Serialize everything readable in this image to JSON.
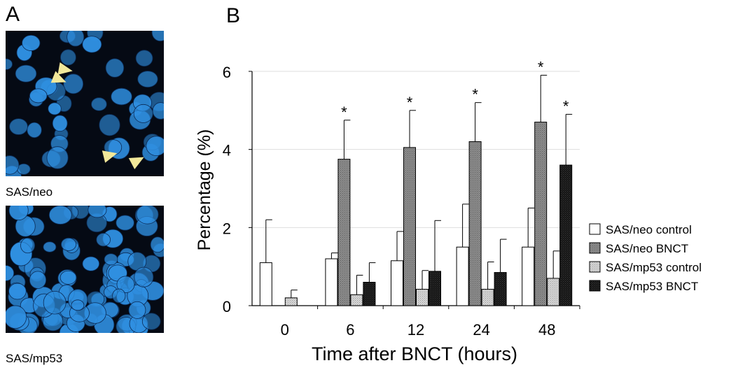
{
  "panel_a": {
    "letter": "A",
    "images": [
      {
        "caption": "SAS/neo"
      },
      {
        "caption": "SAS/mp53"
      }
    ]
  },
  "panel_b": {
    "letter": "B"
  },
  "colors": {
    "nuclei": "#2f8fe0",
    "arrowhead": "#f2e89a",
    "neo_control": "#ffffff",
    "neo_bnct": "#8f8f8f",
    "mp53_control": "#d8d8d8",
    "mp53_bnct": "#141414"
  },
  "chart_data": {
    "type": "bar",
    "categories": [
      "0",
      "6",
      "12",
      "24",
      "48"
    ],
    "xlabel": "Time after BNCT (hours)",
    "ylabel": "Percentage (%)",
    "ylim": [
      0,
      6
    ],
    "yticks": [
      0,
      2,
      4,
      6
    ],
    "grid": true,
    "legend_position": "right",
    "series": [
      {
        "name": "SAS/neo control",
        "values": [
          1.1,
          1.2,
          1.15,
          1.5,
          1.5
        ],
        "errors": [
          1.1,
          0.15,
          0.75,
          1.1,
          1.0
        ],
        "significant": [
          false,
          false,
          false,
          false,
          false
        ]
      },
      {
        "name": "SAS/neo BNCT",
        "values": [
          0,
          3.75,
          4.05,
          4.2,
          4.7
        ],
        "errors": [
          0,
          1.0,
          0.95,
          1.0,
          1.2
        ],
        "significant": [
          false,
          true,
          true,
          true,
          true
        ]
      },
      {
        "name": "SAS/mp53 control",
        "values": [
          0.2,
          0.28,
          0.42,
          0.42,
          0.7
        ],
        "errors": [
          0.2,
          0.5,
          0.48,
          0.7,
          0.7
        ],
        "significant": [
          false,
          false,
          false,
          false,
          false
        ]
      },
      {
        "name": "SAS/mp53 BNCT",
        "values": [
          0,
          0.6,
          0.88,
          0.85,
          3.6
        ],
        "errors": [
          0,
          0.5,
          1.3,
          0.85,
          1.3
        ],
        "significant": [
          false,
          false,
          false,
          false,
          true
        ]
      }
    ],
    "significance_marker": "*"
  }
}
